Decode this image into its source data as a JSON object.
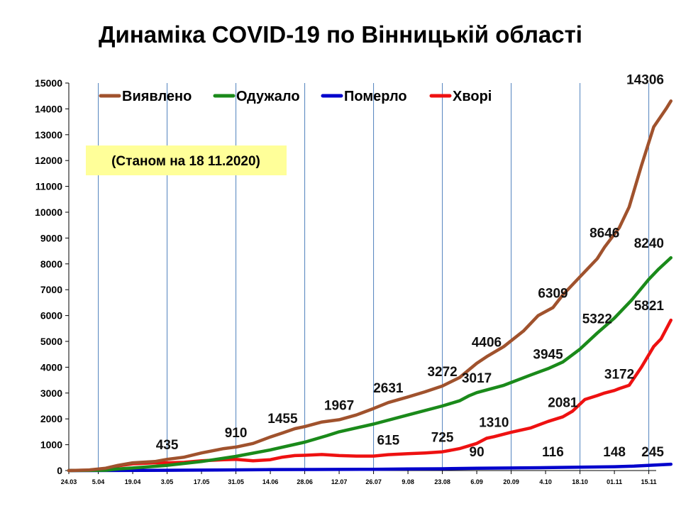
{
  "chart_data": {
    "type": "line",
    "title": "Динаміка COVID-19 по Вінницькій області",
    "note": "(Станом на 18 11.2020)",
    "ylim": [
      0,
      15000
    ],
    "y_ticks": [
      0,
      1000,
      2000,
      3000,
      4000,
      5000,
      6000,
      7000,
      8000,
      9000,
      10000,
      11000,
      12000,
      13000,
      14000,
      15000
    ],
    "x_tick_labels": [
      "24.03",
      "5.04",
      "19.04",
      "3.05",
      "17.05",
      "31.05",
      "14.06",
      "28.06",
      "12.07",
      "26.07",
      "9.08",
      "23.08",
      "6.09",
      "20.09",
      "4.10",
      "18.10",
      "01.11",
      "15.11"
    ],
    "x_range_days": [
      0,
      239
    ],
    "x_tick_days": [
      0,
      12,
      26,
      40,
      54,
      68,
      82,
      96,
      110,
      124,
      138,
      152,
      166,
      180,
      194,
      208,
      222,
      236
    ],
    "grid": "vertical-at-every-second-tick",
    "legend_position": "top",
    "series": [
      {
        "name": "Виявлено",
        "color": "#a0522d",
        "points": [
          [
            0,
            0
          ],
          [
            8,
            20
          ],
          [
            15,
            90
          ],
          [
            20,
            200
          ],
          [
            26,
            300
          ],
          [
            35,
            350
          ],
          [
            40,
            435
          ],
          [
            47,
            520
          ],
          [
            54,
            680
          ],
          [
            63,
            850
          ],
          [
            68,
            910
          ],
          [
            75,
            1050
          ],
          [
            82,
            1300
          ],
          [
            87,
            1455
          ],
          [
            92,
            1620
          ],
          [
            96,
            1700
          ],
          [
            103,
            1880
          ],
          [
            110,
            1967
          ],
          [
            117,
            2150
          ],
          [
            124,
            2400
          ],
          [
            130,
            2631
          ],
          [
            138,
            2850
          ],
          [
            145,
            3050
          ],
          [
            152,
            3272
          ],
          [
            159,
            3600
          ],
          [
            166,
            4150
          ],
          [
            170,
            4406
          ],
          [
            177,
            4800
          ],
          [
            185,
            5400
          ],
          [
            191,
            6000
          ],
          [
            197,
            6309
          ],
          [
            201,
            6800
          ],
          [
            208,
            7500
          ],
          [
            215,
            8200
          ],
          [
            218,
            8646
          ],
          [
            224,
            9400
          ],
          [
            228,
            10200
          ],
          [
            233,
            11800
          ],
          [
            238,
            13300
          ],
          [
            243,
            14000
          ],
          [
            245,
            14306
          ]
        ]
      },
      {
        "name": "Одужало",
        "color": "#1a8a1a",
        "points": [
          [
            0,
            0
          ],
          [
            15,
            10
          ],
          [
            20,
            60
          ],
          [
            26,
            100
          ],
          [
            40,
            200
          ],
          [
            54,
            350
          ],
          [
            68,
            550
          ],
          [
            82,
            800
          ],
          [
            96,
            1100
          ],
          [
            105,
            1350
          ],
          [
            110,
            1500
          ],
          [
            124,
            1800
          ],
          [
            138,
            2150
          ],
          [
            152,
            2500
          ],
          [
            159,
            2700
          ],
          [
            163,
            2900
          ],
          [
            166,
            3017
          ],
          [
            177,
            3300
          ],
          [
            188,
            3700
          ],
          [
            195,
            3945
          ],
          [
            201,
            4200
          ],
          [
            208,
            4700
          ],
          [
            215,
            5322
          ],
          [
            222,
            5900
          ],
          [
            229,
            6600
          ],
          [
            236,
            7400
          ],
          [
            240,
            7800
          ],
          [
            245,
            8240
          ]
        ]
      },
      {
        "name": "Померло",
        "color": "#0000cc",
        "points": [
          [
            0,
            0
          ],
          [
            20,
            2
          ],
          [
            40,
            10
          ],
          [
            60,
            20
          ],
          [
            80,
            35
          ],
          [
            100,
            40
          ],
          [
            124,
            50
          ],
          [
            138,
            60
          ],
          [
            152,
            70
          ],
          [
            166,
            90
          ],
          [
            180,
            100
          ],
          [
            197,
            116
          ],
          [
            208,
            130
          ],
          [
            222,
            148
          ],
          [
            230,
            170
          ],
          [
            240,
            220
          ],
          [
            245,
            245
          ]
        ]
      },
      {
        "name": "Хворі",
        "color": "#ee1111",
        "points": [
          [
            0,
            0
          ],
          [
            8,
            15
          ],
          [
            15,
            70
          ],
          [
            20,
            180
          ],
          [
            26,
            260
          ],
          [
            35,
            300
          ],
          [
            40,
            300
          ],
          [
            47,
            320
          ],
          [
            54,
            380
          ],
          [
            63,
            420
          ],
          [
            68,
            430
          ],
          [
            75,
            380
          ],
          [
            82,
            420
          ],
          [
            87,
            520
          ],
          [
            92,
            580
          ],
          [
            96,
            590
          ],
          [
            103,
            620
          ],
          [
            110,
            580
          ],
          [
            117,
            560
          ],
          [
            124,
            560
          ],
          [
            130,
            615
          ],
          [
            138,
            650
          ],
          [
            145,
            680
          ],
          [
            152,
            725
          ],
          [
            159,
            850
          ],
          [
            166,
            1050
          ],
          [
            170,
            1250
          ],
          [
            173,
            1310
          ],
          [
            180,
            1480
          ],
          [
            188,
            1650
          ],
          [
            195,
            1900
          ],
          [
            201,
            2081
          ],
          [
            205,
            2300
          ],
          [
            210,
            2750
          ],
          [
            215,
            2900
          ],
          [
            218,
            3000
          ],
          [
            222,
            3100
          ],
          [
            224,
            3172
          ],
          [
            228,
            3300
          ],
          [
            233,
            4000
          ],
          [
            238,
            4800
          ],
          [
            241,
            5100
          ],
          [
            245,
            5821
          ]
        ]
      }
    ],
    "annotations": [
      {
        "text": "435",
        "series": "Виявлено",
        "x": 40,
        "y": 435
      },
      {
        "text": "910",
        "series": "Виявлено",
        "x": 68,
        "y": 910
      },
      {
        "text": "1455",
        "series": "Виявлено",
        "x": 87,
        "y": 1455
      },
      {
        "text": "1967",
        "series": "Виявлено",
        "x": 110,
        "y": 1967
      },
      {
        "text": "2631",
        "series": "Виявлено",
        "x": 130,
        "y": 2631
      },
      {
        "text": "3272",
        "series": "Виявлено",
        "x": 152,
        "y": 3272
      },
      {
        "text": "4406",
        "series": "Виявлено",
        "x": 170,
        "y": 4406
      },
      {
        "text": "6309",
        "series": "Виявлено",
        "x": 197,
        "y": 6309
      },
      {
        "text": "8646",
        "series": "Виявлено",
        "x": 218,
        "y": 8646
      },
      {
        "text": "14306",
        "series": "Виявлено",
        "x": 245,
        "y": 14306
      },
      {
        "text": "3017",
        "series": "Одужало",
        "x": 166,
        "y": 3017
      },
      {
        "text": "3945",
        "series": "Одужало",
        "x": 195,
        "y": 3945
      },
      {
        "text": "5322",
        "series": "Одужало",
        "x": 215,
        "y": 5322
      },
      {
        "text": "8240",
        "series": "Одужало",
        "x": 245,
        "y": 8240
      },
      {
        "text": "615",
        "series": "Хворі",
        "x": 130,
        "y": 615
      },
      {
        "text": "725",
        "series": "Хворі",
        "x": 152,
        "y": 725
      },
      {
        "text": "1310",
        "series": "Хворі",
        "x": 173,
        "y": 1310
      },
      {
        "text": "2081",
        "series": "Хворі",
        "x": 201,
        "y": 2081
      },
      {
        "text": "3172",
        "series": "Хворі",
        "x": 224,
        "y": 3172
      },
      {
        "text": "5821",
        "series": "Хворі",
        "x": 245,
        "y": 5821
      },
      {
        "text": "90",
        "series": "Померло",
        "x": 166,
        "y": 90
      },
      {
        "text": "116",
        "series": "Померло",
        "x": 197,
        "y": 116
      },
      {
        "text": "148",
        "series": "Померло",
        "x": 222,
        "y": 148
      },
      {
        "text": "245",
        "series": "Померло",
        "x": 245,
        "y": 245
      }
    ]
  }
}
